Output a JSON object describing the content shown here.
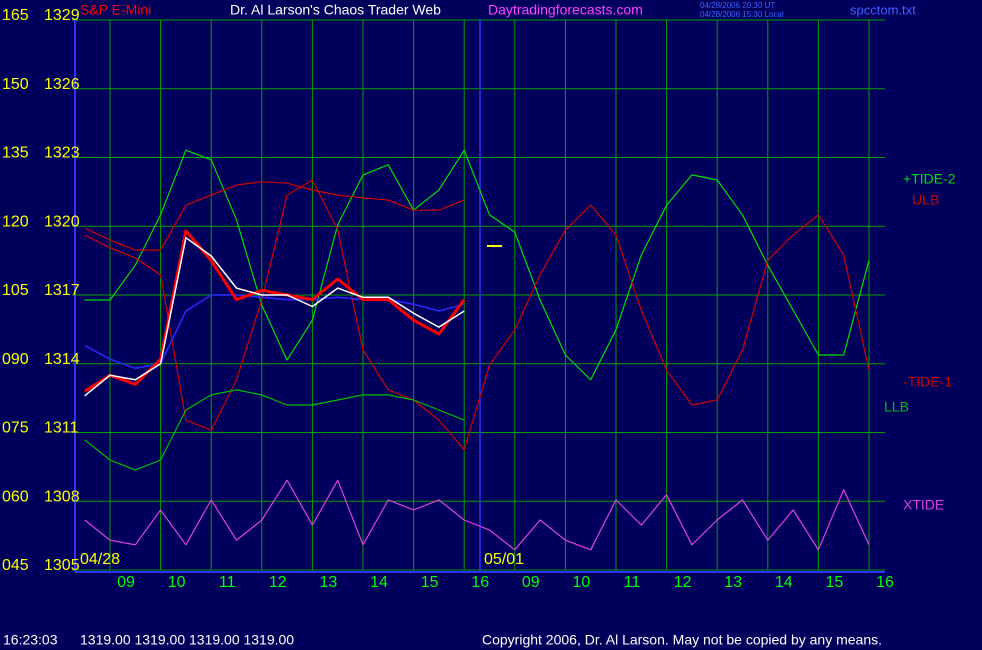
{
  "chart_data": {
    "type": "line",
    "title": "Dr. Al Larson's Chaos Trader Web",
    "annotations": [
      "Daytradingforecasts.com",
      "04/28/2006 20:30 UT",
      "04/28/2006 15:30 Local",
      "spcctom.txt",
      "04/28",
      "05/01",
      "16:23:03",
      "1319.00 1319.00 1319.00 1319.00",
      "Copyright 2006, Dr. Al Larson. May not be copied by any means."
    ],
    "categories": [
      null,
      "09",
      null,
      "10",
      null,
      "11",
      null,
      "12",
      null,
      "13",
      null,
      "14",
      null,
      "15",
      null,
      "16",
      null,
      "09",
      null,
      "10",
      null,
      "11",
      null,
      "12",
      null,
      "13",
      null,
      "14",
      null,
      "15",
      null,
      "16"
    ],
    "ylim": [
      45,
      165
    ],
    "yticks": [
      {
        "value": 45,
        "label": "045"
      },
      {
        "value": 60,
        "label": "060"
      },
      {
        "value": 75,
        "label": "075"
      },
      {
        "value": 90,
        "label": "090"
      },
      105,
      120,
      135,
      150,
      165
    ],
    "y2lim": [
      1305,
      1329
    ],
    "y2ticks": [
      1305,
      1308,
      1311,
      1314,
      1317,
      1320,
      1323,
      1326,
      1329
    ],
    "grid": true,
    "series": [
      {
        "name": "S&P E-Mini",
        "color": "#ff0000",
        "axis": "y2",
        "values": [
          1312.8,
          1313.5,
          1313.1,
          1314.2,
          1319.8,
          1318.5,
          1316.8,
          1317.2,
          1317.0,
          1316.8,
          1317.7,
          1316.8,
          1316.8,
          1315.9,
          1315.3,
          1316.8,
          null,
          null,
          null,
          null,
          null,
          null,
          null,
          null,
          null,
          null,
          null,
          null,
          null,
          null,
          null,
          null
        ]
      },
      {
        "color": "#ffffff",
        "axis": "y2",
        "values": [
          1312.6,
          1313.5,
          1313.3,
          1314.0,
          1319.5,
          1318.7,
          1317.3,
          1317.0,
          1317.0,
          1316.5,
          1317.3,
          1316.9,
          1316.9,
          1316.2,
          1315.6,
          1316.3,
          null,
          null,
          null,
          null,
          null,
          null,
          null,
          null,
          null,
          null,
          null,
          null,
          null,
          null,
          null,
          null
        ]
      },
      {
        "color": "#2a2aff",
        "axis": "y2",
        "values": [
          1314.8,
          1314.2,
          1313.8,
          1314.0,
          1316.3,
          1317.0,
          1317.0,
          1316.9,
          1316.8,
          1316.8,
          1316.9,
          1316.8,
          1316.8,
          1316.6,
          1316.3,
          1316.6,
          null,
          null,
          null,
          null,
          null,
          null,
          null,
          null,
          null,
          null,
          null,
          null,
          null,
          null,
          null,
          null
        ]
      },
      {
        "name": "+TIDE-2",
        "color": "#00e000",
        "values": [
          103.9,
          103.9,
          111.5,
          122.5,
          136.6,
          134.5,
          121.4,
          102.8,
          90.8,
          99.5,
          120.3,
          131.2,
          133.4,
          123.5,
          127.9,
          136.6,
          122.5,
          118.7,
          103.9,
          91.9,
          86.5,
          97.4,
          113.7,
          124.6,
          131.2,
          130.1,
          122.5,
          111.5,
          101.7,
          91.9,
          91.9,
          112.6
        ]
      },
      {
        "name": "ULB",
        "color": "#d00000",
        "values": [
          119.6,
          117.0,
          114.8,
          114.8,
          124.6,
          126.8,
          129.0,
          129.7,
          129.4,
          127.9,
          126.8,
          126.2,
          125.7,
          123.5,
          123.5,
          125.7,
          null,
          null,
          null,
          null,
          null,
          null,
          null,
          null,
          null,
          null,
          null,
          null,
          null,
          null,
          null,
          null
        ]
      },
      {
        "name": "-TIDE-1",
        "color": "#d00000",
        "values": [
          118.1,
          115.3,
          113.1,
          109.4,
          77.7,
          75.5,
          86.5,
          103.9,
          126.8,
          130.1,
          119.2,
          93.0,
          84.3,
          82.1,
          77.7,
          71.2,
          89.7,
          97.4,
          109.4,
          119.2,
          124.6,
          118.1,
          101.7,
          88.6,
          81.0,
          82.1,
          93.0,
          112.6,
          118.1,
          122.5,
          113.7,
          88.6
        ]
      },
      {
        "name": "LLB",
        "color": "#00c000",
        "values": [
          73.4,
          69.0,
          66.8,
          69.0,
          79.9,
          83.2,
          84.3,
          83.2,
          81.0,
          81.0,
          82.1,
          83.2,
          83.2,
          82.1,
          79.9,
          77.7,
          null,
          null,
          null,
          null,
          null,
          null,
          null,
          null,
          null,
          null,
          null,
          null,
          null,
          null,
          null,
          null
        ]
      },
      {
        "name": "XTIDE",
        "color": "#e040e0",
        "values": [
          55.9,
          51.5,
          50.5,
          58.1,
          50.5,
          60.3,
          51.5,
          55.9,
          64.6,
          54.8,
          64.6,
          50.5,
          60.3,
          58.1,
          60.3,
          55.9,
          53.7,
          49.4,
          55.9,
          51.5,
          49.4,
          60.3,
          54.8,
          61.4,
          50.5,
          55.9,
          60.3,
          51.5,
          58.1,
          49.4,
          62.5,
          50.5
        ]
      }
    ]
  }
}
